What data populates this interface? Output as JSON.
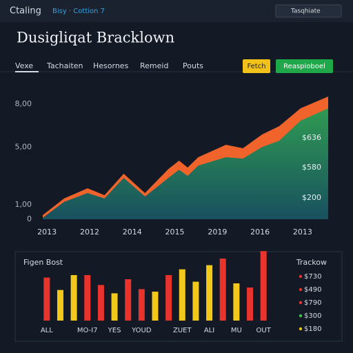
{
  "header": {
    "app": "Ctaling",
    "status": "Bisy · Cottion 7",
    "search": "Tasqhiate"
  },
  "title": "Dusigliqat Bracklown",
  "tabs": [
    "Vexe",
    "Tachaiten",
    "Hesornes",
    "Remeid",
    "Pouts"
  ],
  "buttons": [
    {
      "label": "Fetch",
      "color": "#f2c21b"
    },
    {
      "label": "Reaspioboel",
      "color": "#1fa84a"
    }
  ],
  "chart_data": [
    {
      "type": "area",
      "x": [
        -0.1,
        0.4,
        0.95,
        1.35,
        1.8,
        2.3,
        2.85,
        3.1,
        3.3,
        3.55,
        4.2,
        4.6,
        5.05,
        5.45,
        5.95,
        6.6
      ],
      "series": [
        {
          "name": "Upper",
          "color": "#f0632a",
          "values": [
            29,
            144,
            215,
            167,
            316,
            182,
            349,
            407,
            359,
            431,
            517,
            493,
            589,
            646,
            770,
            852
          ]
        },
        {
          "name": "Lower",
          "color": "#2b8a55",
          "values": [
            10,
            120,
            182,
            144,
            287,
            158,
            287,
            344,
            301,
            373,
            431,
            421,
            502,
            545,
            684,
            770
          ]
        }
      ],
      "xlim": [
        -0.1,
        6.6
      ],
      "xticks": [
        {
          "value": 0,
          "label": "2013"
        },
        {
          "value": 1,
          "label": "2012"
        },
        {
          "value": 2,
          "label": "2014"
        },
        {
          "value": 3,
          "label": "2015"
        },
        {
          "value": 4,
          "label": "2019"
        },
        {
          "value": 5,
          "label": "2016"
        },
        {
          "value": 6,
          "label": "2013"
        }
      ],
      "ylim": [
        0,
        900
      ],
      "yticks": [
        0,
        {
          "value": 100,
          "label": "1,00"
        },
        {
          "value": 500,
          "label": "5,00"
        },
        {
          "value": 800,
          "label": "8,00"
        }
      ],
      "annotations": [
        "$636",
        "$580",
        "$200"
      ],
      "grid": false
    },
    {
      "type": "bar",
      "title": "Figen Bost",
      "categories": [
        "ALL",
        null,
        null,
        "MO-I7",
        null,
        "YES",
        null,
        "YOUD",
        null,
        null,
        "ZUET",
        null,
        "ALI",
        null,
        "MU",
        null,
        "OUT"
      ],
      "values": [
        52,
        37,
        55,
        55,
        43,
        33,
        50,
        38,
        35,
        55,
        62,
        47,
        67,
        75,
        45,
        40,
        84
      ],
      "colors": [
        "#e8342c",
        "#f2c81b",
        "#f2c81b",
        "#e8342c",
        "#e8342c",
        "#f2c81b",
        "#e8342c",
        "#e8342c",
        "#f2c81b",
        "#e8342c",
        "#f2c81b",
        "#f2c81b",
        "#f2c81b",
        "#e8342c",
        "#f2c81b",
        "#e8342c",
        "#e8342c"
      ],
      "ylim": [
        0,
        100
      ],
      "legend": {
        "title": "Trackow",
        "items": [
          {
            "label": "$730",
            "color": "#e8342c"
          },
          {
            "label": "$490",
            "color": "#e8342c"
          },
          {
            "label": "$790",
            "color": "#e8342c"
          },
          {
            "label": "$300",
            "color": "#3cc24a"
          },
          {
            "label": "$180",
            "color": "#e8c21b"
          }
        ]
      }
    }
  ]
}
